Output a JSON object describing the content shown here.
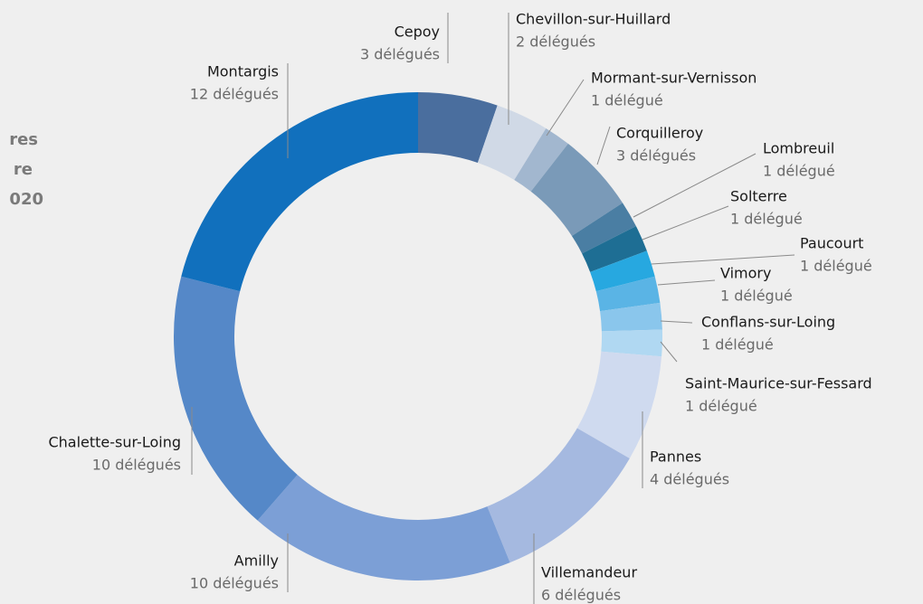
{
  "title_fragments": [
    "res",
    "re",
    "020"
  ],
  "chart_data": {
    "type": "donut",
    "categories": [
      "Cepoy",
      "Chevillon-sur-Huillard",
      "Mormant-sur-Vernisson",
      "Corquilleroy",
      "Lombreuil",
      "Solterre",
      "Paucourt",
      "Vimory",
      "Conflans-sur-Loing",
      "Saint-Maurice-sur-Fessard",
      "Pannes",
      "Villemandeur",
      "Amilly",
      "Chalette-sur-Loing",
      "Montargis"
    ],
    "values": [
      3,
      2,
      1,
      3,
      1,
      1,
      1,
      1,
      1,
      1,
      4,
      6,
      10,
      10,
      12
    ],
    "value_labels": [
      "3 délégués",
      "2 délégués",
      "1 délégué",
      "3 délégués",
      "1 délégué",
      "1 délégué",
      "1 délégué",
      "1 délégué",
      "1 délégué",
      "1 délégué",
      "4 délégués",
      "6 délégués",
      "10 délégués",
      "10 délégués",
      "12 délégués"
    ],
    "colors": [
      "#4a6e9e",
      "#d0d9e6",
      "#a2b7cf",
      "#7a9ab8",
      "#4a7ea3",
      "#1e6e94",
      "#27a8e0",
      "#5ab4e5",
      "#8ac6ec",
      "#b0d8f2",
      "#cfdaef",
      "#a5b9e0",
      "#7c9fd6",
      "#5588c8",
      "#1170bd"
    ]
  }
}
